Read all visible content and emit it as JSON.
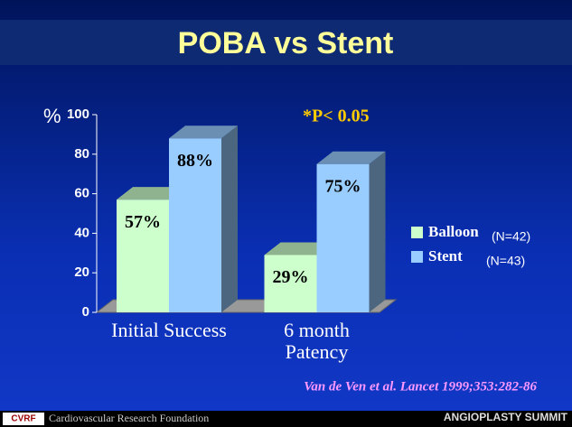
{
  "chart_data": {
    "type": "bar3d",
    "title": "POBA vs Stent",
    "y_label": "%",
    "annotation": "*P< 0.05",
    "categories": [
      "Initial Success",
      "6 month Patency"
    ],
    "series": [
      {
        "name": "Balloon",
        "n_label": "(N=42)",
        "color": "#ccffcc",
        "values": [
          57,
          29
        ],
        "value_labels": [
          "57%",
          "29%"
        ]
      },
      {
        "name": "Stent",
        "n_label": "(N=43)",
        "color": "#99ccff",
        "values": [
          88,
          75
        ],
        "value_labels": [
          "88%",
          "75%"
        ]
      }
    ],
    "ylim": [
      0,
      100
    ],
    "yticks": [
      0,
      20,
      40,
      60,
      80,
      100
    ],
    "citation": "Van de Ven et al. Lancet 1999;353:282-86"
  },
  "footer": {
    "logo": "CVRF",
    "organization": "Cardiovascular Research Foundation",
    "event": "ANGIOPLASTY SUMMIT"
  }
}
